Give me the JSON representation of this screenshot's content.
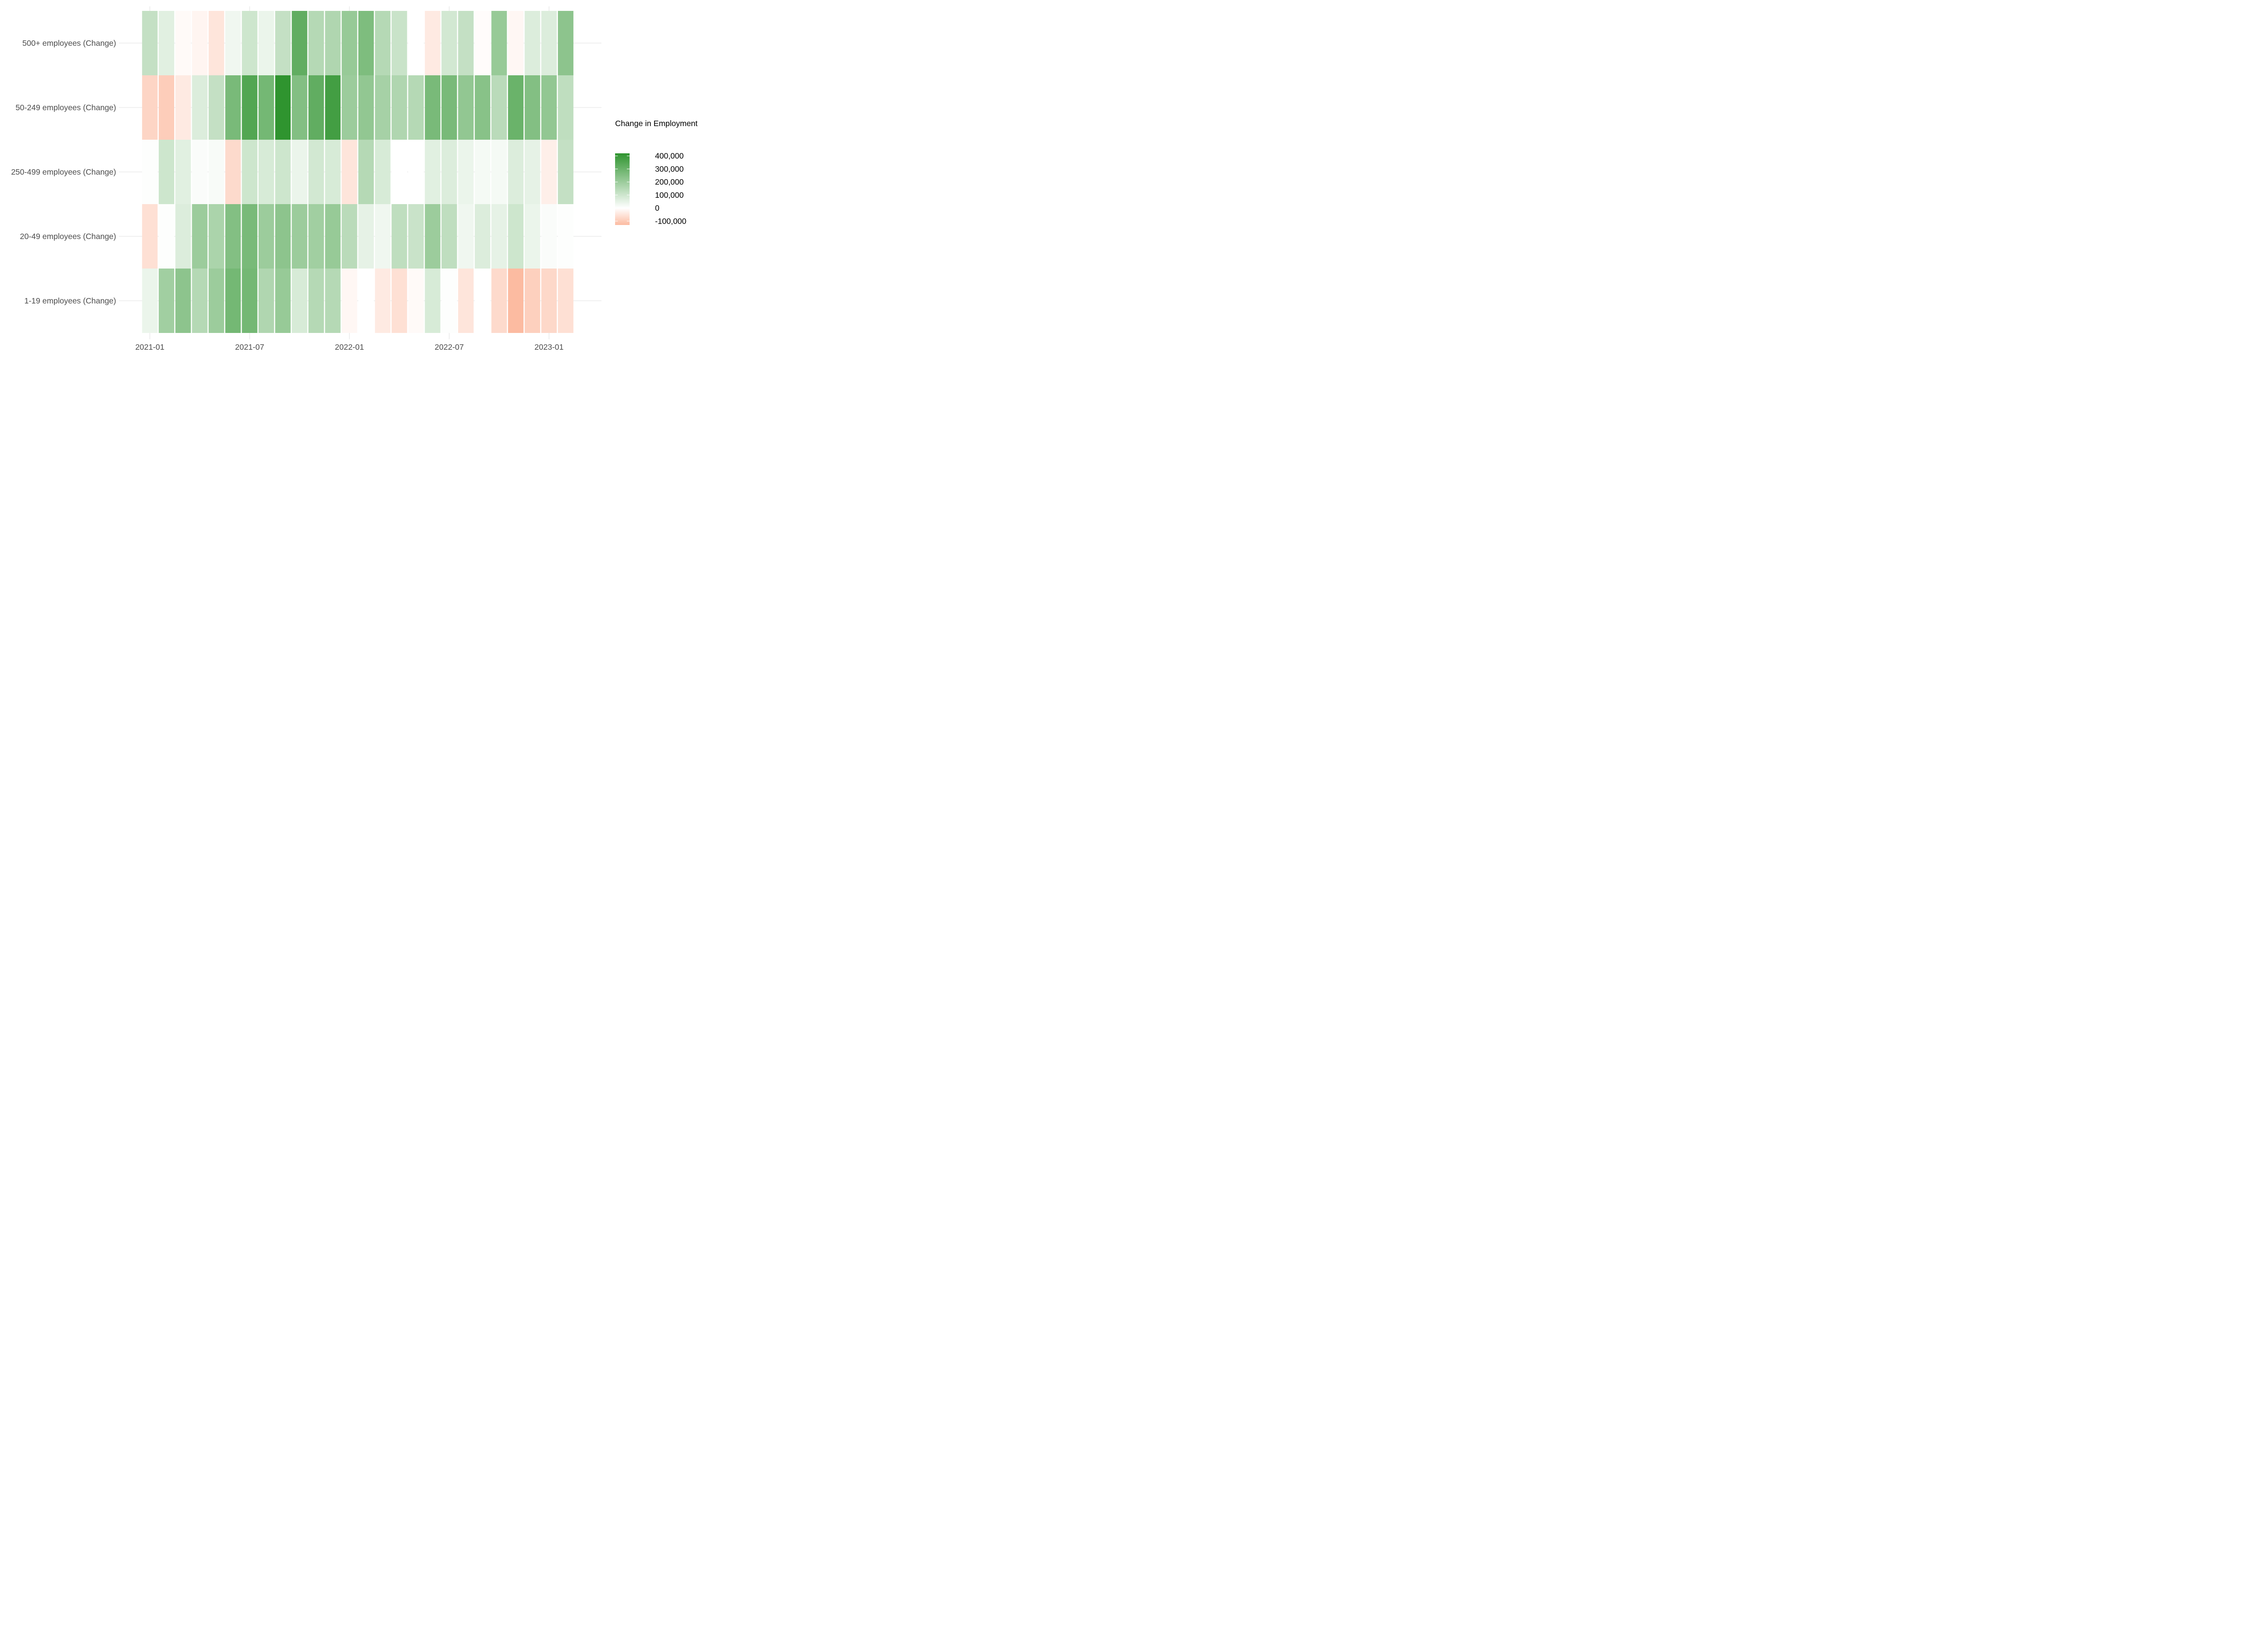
{
  "chart_data": {
    "type": "heatmap",
    "title": "",
    "xlabel": "",
    "ylabel": "",
    "x": [
      "2021-01",
      "2021-02",
      "2021-03",
      "2021-04",
      "2021-05",
      "2021-06",
      "2021-07",
      "2021-08",
      "2021-09",
      "2021-10",
      "2021-11",
      "2021-12",
      "2022-01",
      "2022-02",
      "2022-03",
      "2022-04",
      "2022-05",
      "2022-06",
      "2022-07",
      "2022-08",
      "2022-09",
      "2022-10",
      "2022-11",
      "2022-12",
      "2023-01",
      "2023-02"
    ],
    "x_ticks": [
      "2021-01",
      "2021-07",
      "2022-01",
      "2022-07",
      "2023-01"
    ],
    "y": [
      "500+ employees (Change)",
      "50-249 employees (Change)",
      "250-499 employees (Change)",
      "20-49 employees (Change)",
      "1-19 employees (Change)"
    ],
    "values": [
      [
        120000,
        60000,
        -10000,
        -20000,
        -50000,
        30000,
        100000,
        40000,
        120000,
        320000,
        150000,
        160000,
        210000,
        260000,
        150000,
        110000,
        0,
        -40000,
        90000,
        120000,
        -5000,
        210000,
        -15000,
        70000,
        70000,
        230000
      ],
      [
        -80000,
        -95000,
        -40000,
        70000,
        120000,
        270000,
        350000,
        280000,
        420000,
        250000,
        320000,
        380000,
        200000,
        220000,
        180000,
        160000,
        150000,
        270000,
        270000,
        220000,
        240000,
        140000,
        300000,
        250000,
        220000,
        130000
      ],
      [
        5000,
        100000,
        60000,
        10000,
        15000,
        -70000,
        100000,
        80000,
        100000,
        40000,
        90000,
        80000,
        -50000,
        150000,
        80000,
        0,
        0,
        60000,
        70000,
        40000,
        20000,
        20000,
        70000,
        50000,
        -30000,
        120000
      ],
      [
        -60000,
        5000,
        70000,
        200000,
        170000,
        250000,
        270000,
        200000,
        230000,
        200000,
        190000,
        210000,
        140000,
        50000,
        30000,
        130000,
        110000,
        200000,
        130000,
        30000,
        70000,
        50000,
        100000,
        40000,
        10000,
        5000
      ],
      [
        40000,
        190000,
        230000,
        150000,
        200000,
        280000,
        280000,
        160000,
        210000,
        80000,
        150000,
        150000,
        -15000,
        0,
        -40000,
        -60000,
        -10000,
        80000,
        5000,
        -50000,
        0,
        -70000,
        -130000,
        -90000,
        -75000,
        -60000
      ]
    ],
    "legend": {
      "title": "Change in Employment",
      "breaks": [
        400000,
        300000,
        200000,
        100000,
        0,
        -100000
      ],
      "labels": [
        "400,000",
        "300,000",
        "200,000",
        "100,000",
        "0",
        "-100,000"
      ],
      "position": "right"
    },
    "color_scale": {
      "low": "#fcbba1",
      "mid": "#ffffff",
      "high": "#2f942f",
      "low_value": -130000,
      "mid_value": 0,
      "high_value": 420000
    },
    "grid": true
  }
}
